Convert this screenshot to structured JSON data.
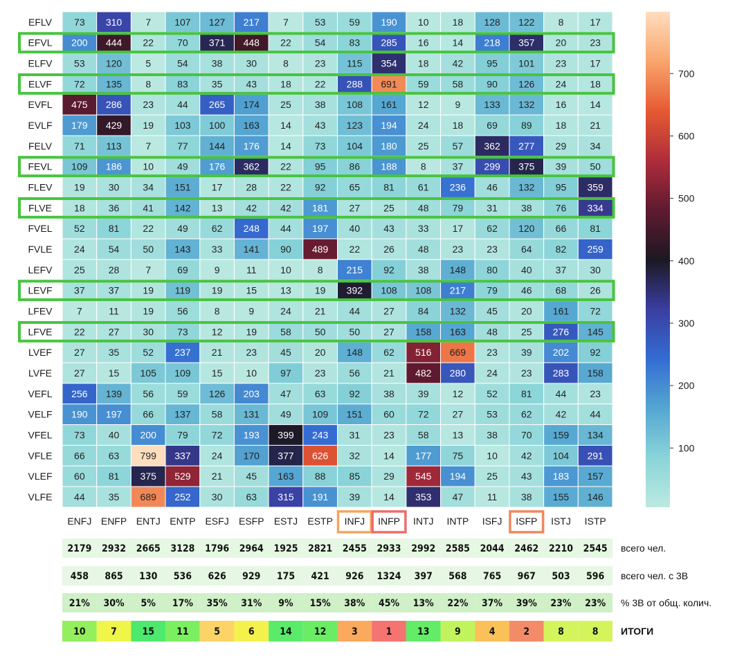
{
  "chart_data": {
    "type": "heatmap",
    "title": "",
    "colormap": "icefire",
    "vmin": 5,
    "vmax": 799,
    "colorbar_ticks": [
      100,
      200,
      300,
      400,
      500,
      600,
      700
    ],
    "columns": [
      "ENFJ",
      "ENFP",
      "ENTJ",
      "ENTP",
      "ESFJ",
      "ESFP",
      "ESTJ",
      "ESTP",
      "INFJ",
      "INFP",
      "INTJ",
      "INTP",
      "ISFJ",
      "ISFP",
      "ISTJ",
      "ISTP"
    ],
    "rows": [
      "EFLV",
      "EFVL",
      "ELFV",
      "ELVF",
      "EVFL",
      "EVLF",
      "FELV",
      "FEVL",
      "FLEV",
      "FLVE",
      "FVEL",
      "FVLE",
      "LEFV",
      "LEVF",
      "LFEV",
      "LFVE",
      "LVEF",
      "LVFE",
      "VEFL",
      "VELF",
      "VFEL",
      "VFLE",
      "VLEF",
      "VLFE"
    ],
    "values": [
      [
        73,
        310,
        7,
        107,
        127,
        217,
        7,
        53,
        59,
        190,
        10,
        18,
        128,
        122,
        8,
        17
      ],
      [
        200,
        444,
        22,
        70,
        371,
        448,
        22,
        54,
        83,
        285,
        16,
        14,
        218,
        357,
        20,
        23
      ],
      [
        53,
        120,
        5,
        54,
        38,
        30,
        8,
        23,
        115,
        354,
        18,
        42,
        95,
        101,
        23,
        17
      ],
      [
        72,
        135,
        8,
        83,
        35,
        43,
        18,
        22,
        288,
        691,
        59,
        58,
        90,
        126,
        24,
        18
      ],
      [
        475,
        286,
        23,
        44,
        265,
        174,
        25,
        38,
        108,
        161,
        12,
        9,
        133,
        132,
        16,
        14
      ],
      [
        179,
        429,
        19,
        103,
        100,
        163,
        14,
        43,
        123,
        194,
        24,
        18,
        69,
        89,
        18,
        21
      ],
      [
        71,
        113,
        7,
        77,
        144,
        176,
        14,
        73,
        104,
        180,
        25,
        57,
        362,
        277,
        29,
        34
      ],
      [
        109,
        186,
        10,
        49,
        176,
        362,
        22,
        95,
        86,
        188,
        8,
        37,
        299,
        375,
        39,
        50
      ],
      [
        19,
        30,
        34,
        151,
        17,
        28,
        22,
        92,
        65,
        81,
        61,
        236,
        46,
        132,
        95,
        359
      ],
      [
        18,
        36,
        41,
        142,
        13,
        42,
        42,
        181,
        27,
        25,
        48,
        79,
        31,
        38,
        76,
        334
      ],
      [
        52,
        81,
        22,
        49,
        62,
        248,
        44,
        197,
        40,
        43,
        33,
        17,
        62,
        120,
        66,
        81
      ],
      [
        24,
        54,
        50,
        143,
        33,
        141,
        90,
        489,
        22,
        26,
        48,
        23,
        23,
        64,
        82,
        259
      ],
      [
        25,
        28,
        7,
        69,
        9,
        11,
        10,
        8,
        215,
        92,
        38,
        148,
        80,
        40,
        37,
        30
      ],
      [
        37,
        37,
        19,
        119,
        19,
        15,
        13,
        19,
        392,
        108,
        108,
        217,
        79,
        46,
        68,
        26
      ],
      [
        7,
        11,
        19,
        56,
        8,
        9,
        24,
        21,
        44,
        27,
        84,
        132,
        45,
        20,
        161,
        72
      ],
      [
        22,
        27,
        30,
        73,
        12,
        19,
        58,
        50,
        50,
        27,
        158,
        163,
        48,
        25,
        276,
        145
      ],
      [
        27,
        35,
        52,
        237,
        21,
        23,
        45,
        20,
        148,
        62,
        516,
        669,
        23,
        39,
        202,
        92
      ],
      [
        27,
        15,
        105,
        109,
        15,
        10,
        97,
        23,
        56,
        21,
        482,
        280,
        24,
        23,
        283,
        158
      ],
      [
        256,
        139,
        56,
        59,
        126,
        203,
        47,
        63,
        92,
        38,
        39,
        12,
        52,
        81,
        44,
        23
      ],
      [
        190,
        197,
        66,
        137,
        58,
        131,
        49,
        109,
        151,
        60,
        72,
        27,
        53,
        62,
        42,
        44
      ],
      [
        73,
        40,
        200,
        79,
        72,
        193,
        399,
        243,
        31,
        23,
        58,
        13,
        38,
        70,
        159,
        134
      ],
      [
        66,
        63,
        799,
        337,
        24,
        170,
        377,
        626,
        32,
        14,
        177,
        75,
        10,
        42,
        104,
        291
      ],
      [
        60,
        81,
        375,
        529,
        21,
        45,
        163,
        88,
        85,
        29,
        545,
        194,
        25,
        43,
        183,
        157
      ],
      [
        44,
        35,
        689,
        252,
        30,
        63,
        315,
        191,
        39,
        14,
        353,
        47,
        11,
        38,
        155,
        146
      ]
    ],
    "highlighted_rows": [
      "EFVL",
      "ELVF",
      "FEVL",
      "FLVE",
      "LEVF",
      "LFVE"
    ],
    "highlighted_columns": [
      {
        "name": "INFJ",
        "color": "#f5a55c"
      },
      {
        "name": "INFP",
        "color": "#ee6b6b"
      },
      {
        "name": "ISFP",
        "color": "#f0875e"
      }
    ],
    "summary": {
      "total_people": {
        "label": "всего чел.",
        "values": [
          "2179",
          "2932",
          "2665",
          "3128",
          "1796",
          "2964",
          "1925",
          "2821",
          "2455",
          "2933",
          "2992",
          "2585",
          "2044",
          "2462",
          "2210",
          "2545"
        ]
      },
      "people_3v": {
        "label": "всего чел. с 3В",
        "values": [
          "458",
          "865",
          "130",
          "536",
          "626",
          "929",
          "175",
          "421",
          "926",
          "1324",
          "397",
          "568",
          "765",
          "967",
          "503",
          "596"
        ]
      },
      "pct_3v": {
        "label": "% 3В от общ. колич.",
        "values": [
          "21%",
          "30%",
          "5%",
          "17%",
          "35%",
          "31%",
          "9%",
          "15%",
          "38%",
          "45%",
          "13%",
          "22%",
          "37%",
          "39%",
          "23%",
          "23%"
        ]
      },
      "results": {
        "label": "ИТОГИ",
        "values": [
          "10",
          "7",
          "15",
          "11",
          "5",
          "6",
          "14",
          "12",
          "3",
          "1",
          "13",
          "9",
          "4",
          "2",
          "8",
          "8"
        ]
      }
    },
    "colors": {
      "row_highlight": "#47c43f",
      "stat_bg": "#e6f8e3",
      "pct_bg": "#d0f0c8",
      "result_bg": [
        "#93ef5d",
        "#f0f54a",
        "#4ee86e",
        "#7cef60",
        "#fbd366",
        "#f4f14d",
        "#5aeb6b",
        "#6aed64",
        "#fba95c",
        "#f57371",
        "#63ec67",
        "#c1f35c",
        "#f9c157",
        "#f38b68",
        "#d4f45b",
        "#d4f45b"
      ]
    }
  }
}
